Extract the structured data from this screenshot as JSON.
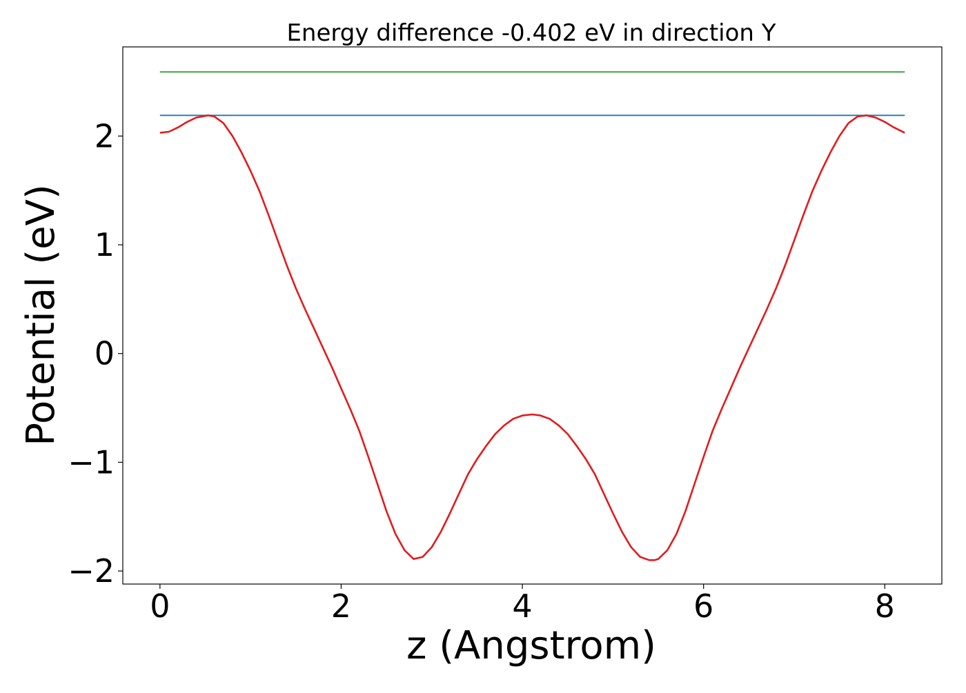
{
  "chart_data": {
    "type": "line",
    "title": "Energy difference -0.402 eV in direction Y",
    "xlabel": "z (Angstrom)",
    "ylabel": "Potential (eV)",
    "xlim": [
      -0.41,
      8.63
    ],
    "ylim": [
      -2.12,
      2.82
    ],
    "xticks": [
      0,
      2,
      4,
      6,
      8
    ],
    "yticks": [
      -2,
      -1,
      0,
      1,
      2
    ],
    "xtick_labels": [
      "0",
      "2",
      "4",
      "6",
      "8"
    ],
    "ytick_labels": [
      "−2",
      "−1",
      "0",
      "1",
      "2"
    ],
    "grid": false,
    "legend": "none",
    "series": [
      {
        "color": "#2ca02c",
        "x": [
          0,
          8.22
        ],
        "y": [
          2.59,
          2.59
        ]
      },
      {
        "color": "#1f77b4",
        "x": [
          0,
          8.22
        ],
        "y": [
          2.19,
          2.19
        ]
      },
      {
        "color": "#e31a1c",
        "x": [
          0,
          0.1,
          0.2,
          0.3,
          0.4,
          0.53,
          0.6,
          0.7,
          0.8,
          0.9,
          1.0,
          1.1,
          1.2,
          1.3,
          1.4,
          1.5,
          1.6,
          1.7,
          1.8,
          1.9,
          2.0,
          2.1,
          2.2,
          2.3,
          2.4,
          2.5,
          2.6,
          2.7,
          2.8,
          2.9,
          3.0,
          3.1,
          3.2,
          3.3,
          3.4,
          3.5,
          3.6,
          3.7,
          3.8,
          3.9,
          4.0,
          4.11,
          4.2,
          4.3,
          4.4,
          4.5,
          4.6,
          4.7,
          4.8,
          4.9,
          5.0,
          5.1,
          5.2,
          5.3,
          5.4,
          5.46,
          5.5,
          5.6,
          5.7,
          5.8,
          5.9,
          6.0,
          6.1,
          6.2,
          6.3,
          6.4,
          6.5,
          6.6,
          6.7,
          6.8,
          6.9,
          7.0,
          7.1,
          7.2,
          7.3,
          7.4,
          7.5,
          7.6,
          7.7,
          7.8,
          7.9,
          8.0,
          8.1,
          8.22
        ],
        "y": [
          2.03,
          2.04,
          2.08,
          2.13,
          2.17,
          2.19,
          2.18,
          2.12,
          2.0,
          1.85,
          1.68,
          1.49,
          1.27,
          1.04,
          0.81,
          0.6,
          0.41,
          0.23,
          0.05,
          -0.13,
          -0.32,
          -0.51,
          -0.71,
          -0.95,
          -1.2,
          -1.45,
          -1.66,
          -1.81,
          -1.89,
          -1.87,
          -1.78,
          -1.64,
          -1.47,
          -1.29,
          -1.11,
          -0.97,
          -0.85,
          -0.74,
          -0.66,
          -0.6,
          -0.57,
          -0.56,
          -0.57,
          -0.6,
          -0.66,
          -0.74,
          -0.85,
          -0.97,
          -1.11,
          -1.29,
          -1.47,
          -1.64,
          -1.78,
          -1.87,
          -1.9,
          -1.9,
          -1.89,
          -1.81,
          -1.66,
          -1.45,
          -1.2,
          -0.95,
          -0.71,
          -0.51,
          -0.32,
          -0.13,
          0.05,
          0.23,
          0.41,
          0.6,
          0.81,
          1.04,
          1.27,
          1.49,
          1.68,
          1.85,
          2.0,
          2.12,
          2.18,
          2.19,
          2.17,
          2.13,
          2.08,
          2.03
        ]
      }
    ]
  }
}
